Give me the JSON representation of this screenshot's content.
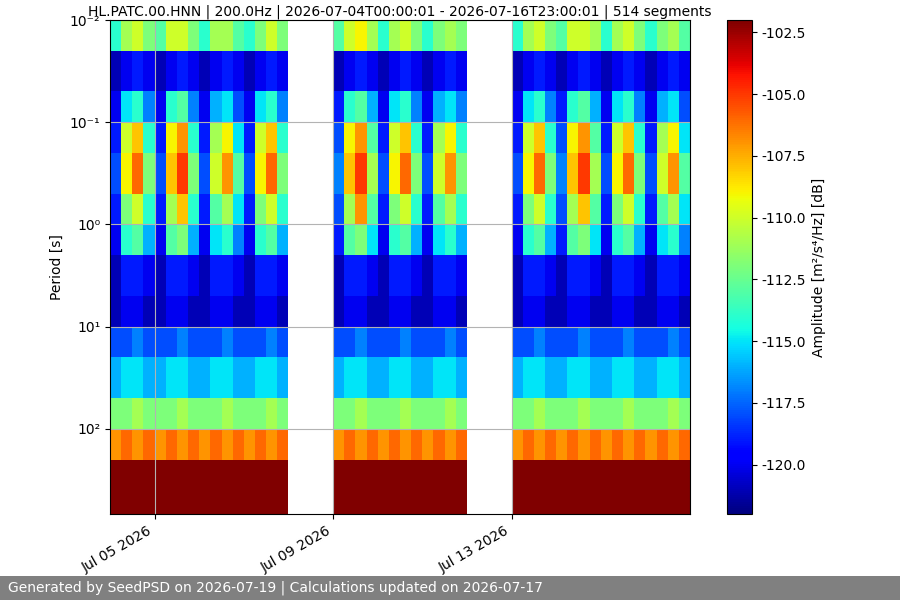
{
  "chart_data": {
    "type": "heatmap",
    "title": "HL.PATC.00.HNN | 200.0Hz | 2026-07-04T00:00:01 - 2026-07-16T23:00:01 | 514 segments",
    "y_label": "Period [s]",
    "colorbar_label": "Amplitude [m²/s⁴/Hz] [dB]",
    "footer": "Generated by SeedPSD on 2026-07-19 | Calculations updated on 2026-07-17",
    "color": "jet",
    "log": "y",
    "grid": true,
    "x": [
      "2026-07-04T00:00",
      "2026-07-04T06:00",
      "2026-07-04T12:00",
      "2026-07-04T18:00",
      "2026-07-05T00:00",
      "2026-07-05T06:00",
      "2026-07-05T12:00",
      "2026-07-05T18:00",
      "2026-07-06T00:00",
      "2026-07-06T06:00",
      "2026-07-06T12:00",
      "2026-07-06T18:00",
      "2026-07-07T00:00",
      "2026-07-07T06:00",
      "2026-07-07T12:00",
      "2026-07-07T18:00",
      "2026-07-08T00:00",
      "2026-07-08T06:00",
      "2026-07-08T12:00",
      "2026-07-08T18:00",
      "2026-07-09T00:00",
      "2026-07-09T06:00",
      "2026-07-09T12:00",
      "2026-07-09T18:00",
      "2026-07-10T00:00",
      "2026-07-10T06:00",
      "2026-07-10T12:00",
      "2026-07-10T18:00",
      "2026-07-11T00:00",
      "2026-07-11T06:00",
      "2026-07-11T12:00",
      "2026-07-11T18:00",
      "2026-07-12T00:00",
      "2026-07-12T06:00",
      "2026-07-12T12:00",
      "2026-07-12T18:00",
      "2026-07-13T00:00",
      "2026-07-13T06:00",
      "2026-07-13T12:00",
      "2026-07-13T18:00",
      "2026-07-14T00:00",
      "2026-07-14T06:00",
      "2026-07-14T12:00",
      "2026-07-14T18:00",
      "2026-07-15T00:00",
      "2026-07-15T06:00",
      "2026-07-15T12:00",
      "2026-07-15T18:00",
      "2026-07-16T00:00",
      "2026-07-16T06:00",
      "2026-07-16T12:00",
      "2026-07-16T18:00",
      "2026-07-17T00:00"
    ],
    "y": [
      0.01,
      0.02,
      0.05,
      0.1,
      0.2,
      0.5,
      1,
      2,
      5,
      10,
      20,
      50,
      100,
      200,
      680
    ],
    "cells": [
      [
        -114,
        -111,
        -110,
        -112,
        -113,
        -110,
        -110,
        -112,
        -114,
        -111,
        -111,
        -113,
        -114,
        -112,
        -110,
        -112,
        null,
        null,
        null,
        null,
        -113,
        -110,
        -109,
        -111,
        -114,
        -111,
        -110,
        -112,
        -114,
        -112,
        -111,
        -112,
        null,
        null,
        null,
        null,
        -114,
        -111,
        -110,
        -112,
        -113,
        -110,
        -110,
        -111,
        -114,
        -111,
        -110,
        -112,
        -114,
        -112,
        -111,
        -113
      ],
      [
        -121,
        -120,
        -119,
        -120,
        -121,
        -120,
        -119,
        -120,
        -121,
        -120,
        -119,
        -120,
        -121,
        -120,
        -119,
        -120,
        null,
        null,
        null,
        null,
        -121,
        -120,
        -119,
        -120,
        -121,
        -120,
        -119,
        -120,
        -121,
        -120,
        -119,
        -120,
        null,
        null,
        null,
        null,
        -121,
        -120,
        -119,
        -120,
        -121,
        -120,
        -119,
        -120,
        -121,
        -120,
        -119,
        -120,
        -121,
        -120,
        -119,
        -120
      ],
      [
        -120,
        -115,
        -114,
        -117,
        -120,
        -114,
        -113,
        -117,
        -120,
        -116,
        -115,
        -118,
        -120,
        -115,
        -114,
        -117,
        null,
        null,
        null,
        null,
        -119,
        -114,
        -113,
        -116,
        -120,
        -115,
        -114,
        -117,
        -120,
        -116,
        -115,
        -117,
        null,
        null,
        null,
        null,
        -120,
        -115,
        -114,
        -117,
        -119,
        -114,
        -113,
        -116,
        -120,
        -115,
        -114,
        -117,
        -120,
        -116,
        -115,
        -118
      ],
      [
        -119,
        -110,
        -108,
        -114,
        -119,
        -109,
        -107,
        -114,
        -119,
        -111,
        -109,
        -115,
        -119,
        -110,
        -108,
        -114,
        null,
        null,
        null,
        null,
        -118,
        -109,
        -107,
        -113,
        -119,
        -110,
        -108,
        -114,
        -119,
        -111,
        -109,
        -114,
        null,
        null,
        null,
        null,
        -119,
        -110,
        -108,
        -114,
        -118,
        -109,
        -107,
        -113,
        -119,
        -110,
        -108,
        -114,
        -119,
        -111,
        -109,
        -115
      ],
      [
        -118,
        -109,
        -106,
        -112,
        -118,
        -108,
        -105,
        -112,
        -118,
        -110,
        -107,
        -113,
        -118,
        -109,
        -106,
        -112,
        null,
        null,
        null,
        null,
        -117,
        -108,
        -105,
        -111,
        -118,
        -109,
        -106,
        -112,
        -118,
        -110,
        -107,
        -112,
        null,
        null,
        null,
        null,
        -118,
        -109,
        -106,
        -112,
        -117,
        -108,
        -105,
        -111,
        -118,
        -109,
        -106,
        -112,
        -118,
        -110,
        -107,
        -113
      ],
      [
        -119,
        -112,
        -110,
        -114,
        -119,
        -111,
        -108,
        -114,
        -119,
        -113,
        -111,
        -115,
        -119,
        -112,
        -110,
        -114,
        null,
        null,
        null,
        null,
        -118,
        -111,
        -107,
        -113,
        -119,
        -112,
        -110,
        -114,
        -119,
        -113,
        -111,
        -114,
        null,
        null,
        null,
        null,
        -119,
        -112,
        -110,
        -114,
        -118,
        -111,
        -108,
        -113,
        -119,
        -112,
        -110,
        -114,
        -119,
        -113,
        -111,
        -115
      ],
      [
        -120,
        -114,
        -113,
        -116,
        -120,
        -113,
        -112,
        -116,
        -120,
        -115,
        -114,
        -117,
        -120,
        -114,
        -113,
        -116,
        null,
        null,
        null,
        null,
        -119,
        -113,
        -112,
        -115,
        -120,
        -114,
        -113,
        -116,
        -120,
        -115,
        -114,
        -116,
        null,
        null,
        null,
        null,
        -120,
        -114,
        -113,
        -116,
        -119,
        -113,
        -112,
        -115,
        -120,
        -114,
        -113,
        -116,
        -120,
        -115,
        -114,
        -117
      ],
      [
        -121,
        -119,
        -119,
        -120,
        -121,
        -119,
        -119,
        -120,
        -121,
        -119,
        -119,
        -120,
        -121,
        -119,
        -119,
        -120,
        null,
        null,
        null,
        null,
        -121,
        -119,
        -119,
        -120,
        -121,
        -119,
        -119,
        -120,
        -121,
        -119,
        -119,
        -120,
        null,
        null,
        null,
        null,
        -121,
        -119,
        -119,
        -120,
        -121,
        -119,
        -119,
        -120,
        -121,
        -119,
        -119,
        -120,
        -121,
        -119,
        -119,
        -120
      ],
      [
        -121,
        -120,
        -120,
        -121,
        -121,
        -120,
        -120,
        -121,
        -121,
        -120,
        -120,
        -121,
        -121,
        -120,
        -120,
        -121,
        null,
        null,
        null,
        null,
        -121,
        -120,
        -120,
        -121,
        -121,
        -120,
        -120,
        -121,
        -121,
        -120,
        -120,
        -121,
        null,
        null,
        null,
        null,
        -121,
        -120,
        -120,
        -121,
        -121,
        -120,
        -120,
        -121,
        -121,
        -120,
        -120,
        -121,
        -121,
        -120,
        -120,
        -121
      ],
      [
        -118,
        -118,
        -117,
        -118,
        -118,
        -118,
        -117,
        -118,
        -118,
        -118,
        -117,
        -118,
        -118,
        -118,
        -117,
        -118,
        null,
        null,
        null,
        null,
        -118,
        -118,
        -117,
        -118,
        -118,
        -118,
        -117,
        -118,
        -118,
        -118,
        -117,
        -118,
        null,
        null,
        null,
        null,
        -118,
        -118,
        -117,
        -118,
        -118,
        -118,
        -117,
        -118,
        -118,
        -118,
        -117,
        -118,
        -118,
        -118,
        -117,
        -118
      ],
      [
        -116,
        -115,
        -115,
        -116,
        -116,
        -115,
        -115,
        -116,
        -116,
        -115,
        -115,
        -116,
        -116,
        -115,
        -115,
        -116,
        null,
        null,
        null,
        null,
        -116,
        -115,
        -115,
        -116,
        -116,
        -115,
        -115,
        -116,
        -116,
        -115,
        -115,
        -116,
        null,
        null,
        null,
        null,
        -116,
        -115,
        -115,
        -116,
        -116,
        -115,
        -115,
        -116,
        -116,
        -115,
        -115,
        -116,
        -116,
        -115,
        -115,
        -116
      ],
      [
        -112,
        -112,
        -111,
        -112,
        -112,
        -112,
        -111,
        -112,
        -112,
        -112,
        -111,
        -112,
        -112,
        -112,
        -111,
        -112,
        null,
        null,
        null,
        null,
        -112,
        -112,
        -111,
        -112,
        -112,
        -112,
        -111,
        -112,
        -112,
        -112,
        -111,
        -112,
        null,
        null,
        null,
        null,
        -112,
        -112,
        -111,
        -112,
        -112,
        -112,
        -111,
        -112,
        -112,
        -112,
        -111,
        -112,
        -112,
        -112,
        -111,
        -112
      ],
      [
        -107,
        -106,
        -107,
        -106,
        -107,
        -106,
        -107,
        -106,
        -107,
        -106,
        -107,
        -106,
        -107,
        -106,
        -107,
        -106,
        null,
        null,
        null,
        null,
        -107,
        -106,
        -107,
        -106,
        -107,
        -106,
        -107,
        -106,
        -107,
        -106,
        -107,
        -106,
        null,
        null,
        null,
        null,
        -107,
        -106,
        -107,
        -106,
        -107,
        -106,
        -107,
        -106,
        -107,
        -106,
        -107,
        -106,
        -107,
        -106,
        -107,
        -106
      ],
      [
        -102,
        -102,
        -102,
        -102,
        -102,
        -102,
        -102,
        -102,
        -102,
        -102,
        -102,
        -102,
        -102,
        -102,
        -102,
        -102,
        null,
        null,
        null,
        null,
        -102,
        -102,
        -102,
        -102,
        -102,
        -102,
        -102,
        -102,
        -102,
        -102,
        -102,
        -102,
        null,
        null,
        null,
        null,
        -102,
        -102,
        -102,
        -102,
        -102,
        -102,
        -102,
        -102,
        -102,
        -102,
        -102,
        -102,
        -102,
        -102,
        -102,
        -102
      ]
    ],
    "xlim": [
      "2026-07-04T00:00",
      "2026-07-17T00:00"
    ],
    "xticks": [
      {
        "value": "2026-07-05T00:00",
        "label": "Jul 05 2026"
      },
      {
        "value": "2026-07-09T00:00",
        "label": "Jul 09 2026"
      },
      {
        "value": "2026-07-13T00:00",
        "label": "Jul 13 2026"
      }
    ],
    "ylim": [
      680,
      0.01
    ],
    "yticks": [
      {
        "value": 0.01,
        "label": "10⁻²"
      },
      {
        "value": 0.1,
        "label": "10⁻¹"
      },
      {
        "value": 1,
        "label": "10⁰"
      },
      {
        "value": 10,
        "label": "10¹"
      },
      {
        "value": 100,
        "label": "10²"
      }
    ],
    "colorbar_range": [
      -122,
      -102
    ],
    "colorbar_ticks": [
      -120.0,
      -117.5,
      -115.0,
      -112.5,
      -110.0,
      -107.5,
      -105.0,
      -102.5
    ]
  }
}
